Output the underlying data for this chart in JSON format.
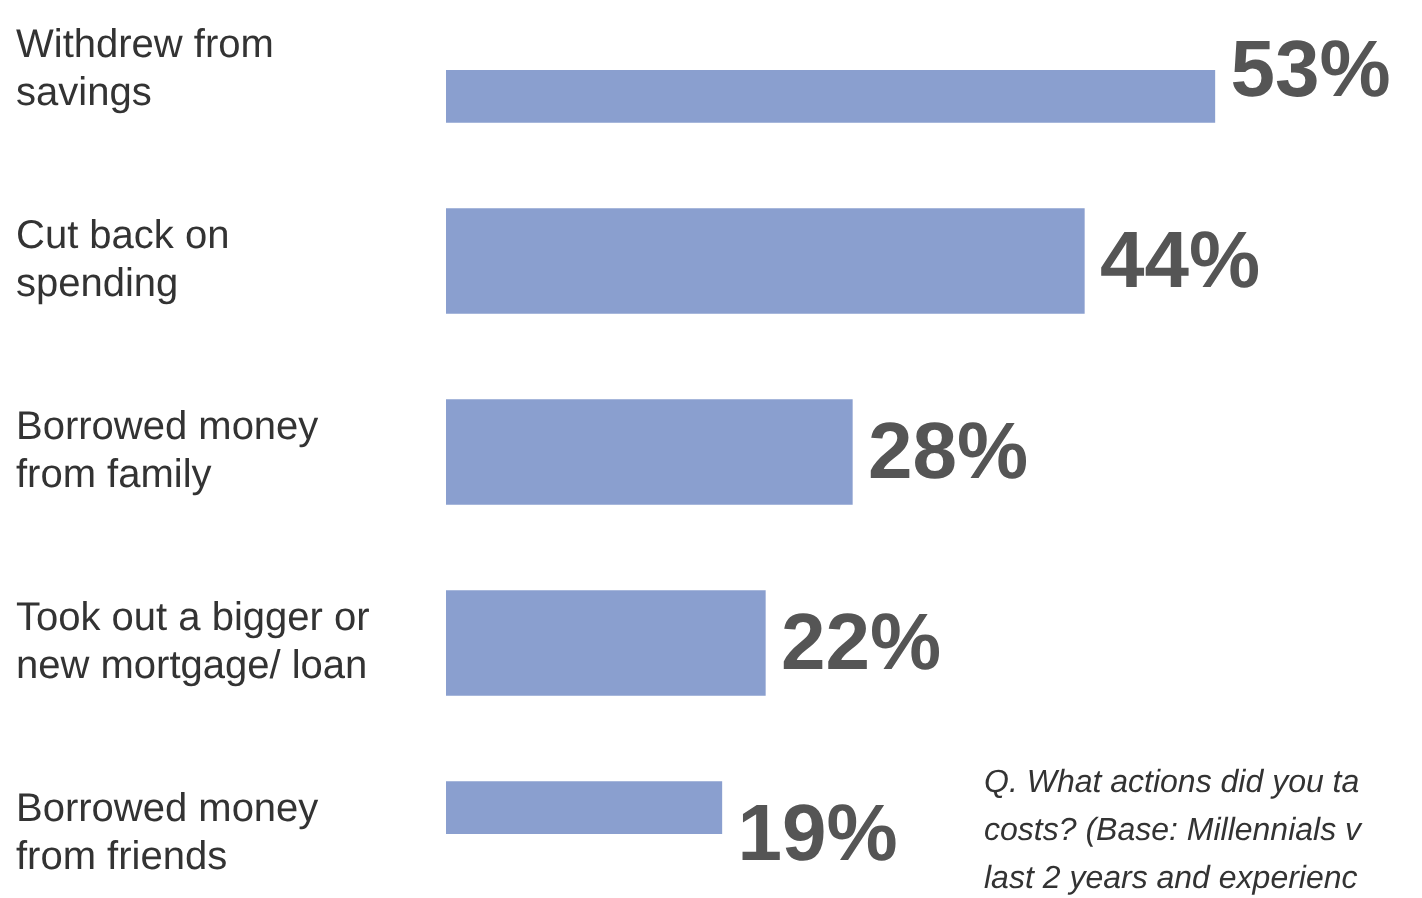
{
  "chart_data": {
    "type": "bar",
    "orientation": "horizontal",
    "categories": [
      "Withdrew from savings",
      "Cut back on spending",
      "Borrowed money from family",
      "Took out a bigger or new mortgage/ loan",
      "Borrowed money from friends"
    ],
    "values": [
      53,
      44,
      28,
      22,
      19
    ],
    "color": "#8a9fcf",
    "data_labels": true,
    "value_labels": [
      "53%",
      "44%",
      "28%",
      "22%",
      "19%"
    ],
    "legend": false,
    "annotations": [
      "Q. What actions did you ta",
      "costs? (Base: Millennials v",
      "last 2 years and experienc"
    ]
  }
}
